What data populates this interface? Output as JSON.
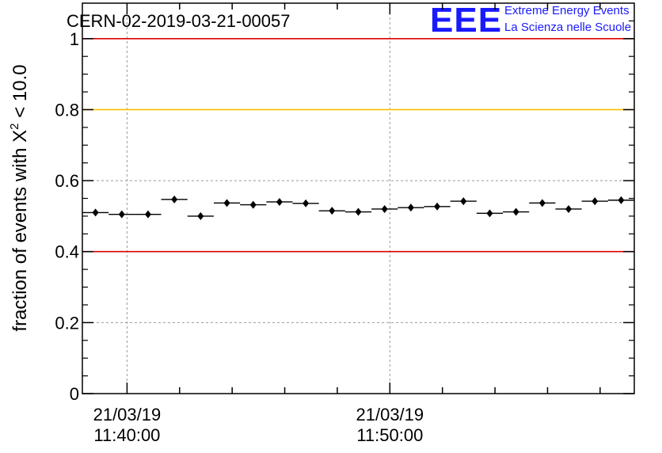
{
  "chart_data": {
    "type": "scatter",
    "title": "CERN-02-2019-03-21-00057",
    "logo": {
      "letters": "EEE",
      "line1": "Extreme Energy Events",
      "line2": "La Scienza nelle Scuole"
    },
    "ylabel": {
      "prefix": "fraction of events with ",
      "symbol": "X",
      "superscript": "2",
      "suffix": " < 10.0"
    },
    "ylim": [
      0,
      1.1
    ],
    "yticks": [
      0,
      0.2,
      0.4,
      0.6,
      0.8,
      1
    ],
    "ytick_labels": [
      "0",
      "0.2",
      "0.4",
      "0.6",
      "0.8",
      "1"
    ],
    "xlim_minutes": [
      -1.7,
      19.3
    ],
    "xtick_labels": [
      {
        "minute": 0,
        "date": "21/03/19",
        "time": "11:40:00"
      },
      {
        "minute": 10,
        "date": "21/03/19",
        "time": "11:50:00"
      }
    ],
    "x_minor_tick_minutes": [
      0,
      2,
      4,
      6,
      8,
      10,
      12,
      14,
      16,
      18
    ],
    "grid": true,
    "reference_lines": [
      {
        "y": 1.0,
        "color": "#e00000"
      },
      {
        "y": 0.8,
        "color": "#ffc000"
      },
      {
        "y": 0.4,
        "color": "#e00000"
      }
    ],
    "bin_width_minutes": 1,
    "series": [
      {
        "x_minutes": [
          -1.2,
          -0.2,
          0.8,
          1.8,
          2.8,
          3.8,
          4.8,
          5.8,
          6.8,
          7.8,
          8.8,
          9.8,
          10.8,
          11.8,
          12.8,
          13.8,
          14.8,
          15.8,
          16.8,
          17.8,
          18.8
        ],
        "values": [
          0.51,
          0.505,
          0.505,
          0.547,
          0.5,
          0.537,
          0.532,
          0.54,
          0.536,
          0.515,
          0.512,
          0.52,
          0.524,
          0.527,
          0.542,
          0.508,
          0.512,
          0.537,
          0.52,
          0.542,
          0.545
        ],
        "errors": [
          0.008,
          0.008,
          0.008,
          0.008,
          0.008,
          0.008,
          0.008,
          0.008,
          0.008,
          0.008,
          0.008,
          0.008,
          0.008,
          0.008,
          0.008,
          0.008,
          0.008,
          0.008,
          0.008,
          0.008,
          0.008
        ],
        "color": "#000000"
      }
    ]
  }
}
